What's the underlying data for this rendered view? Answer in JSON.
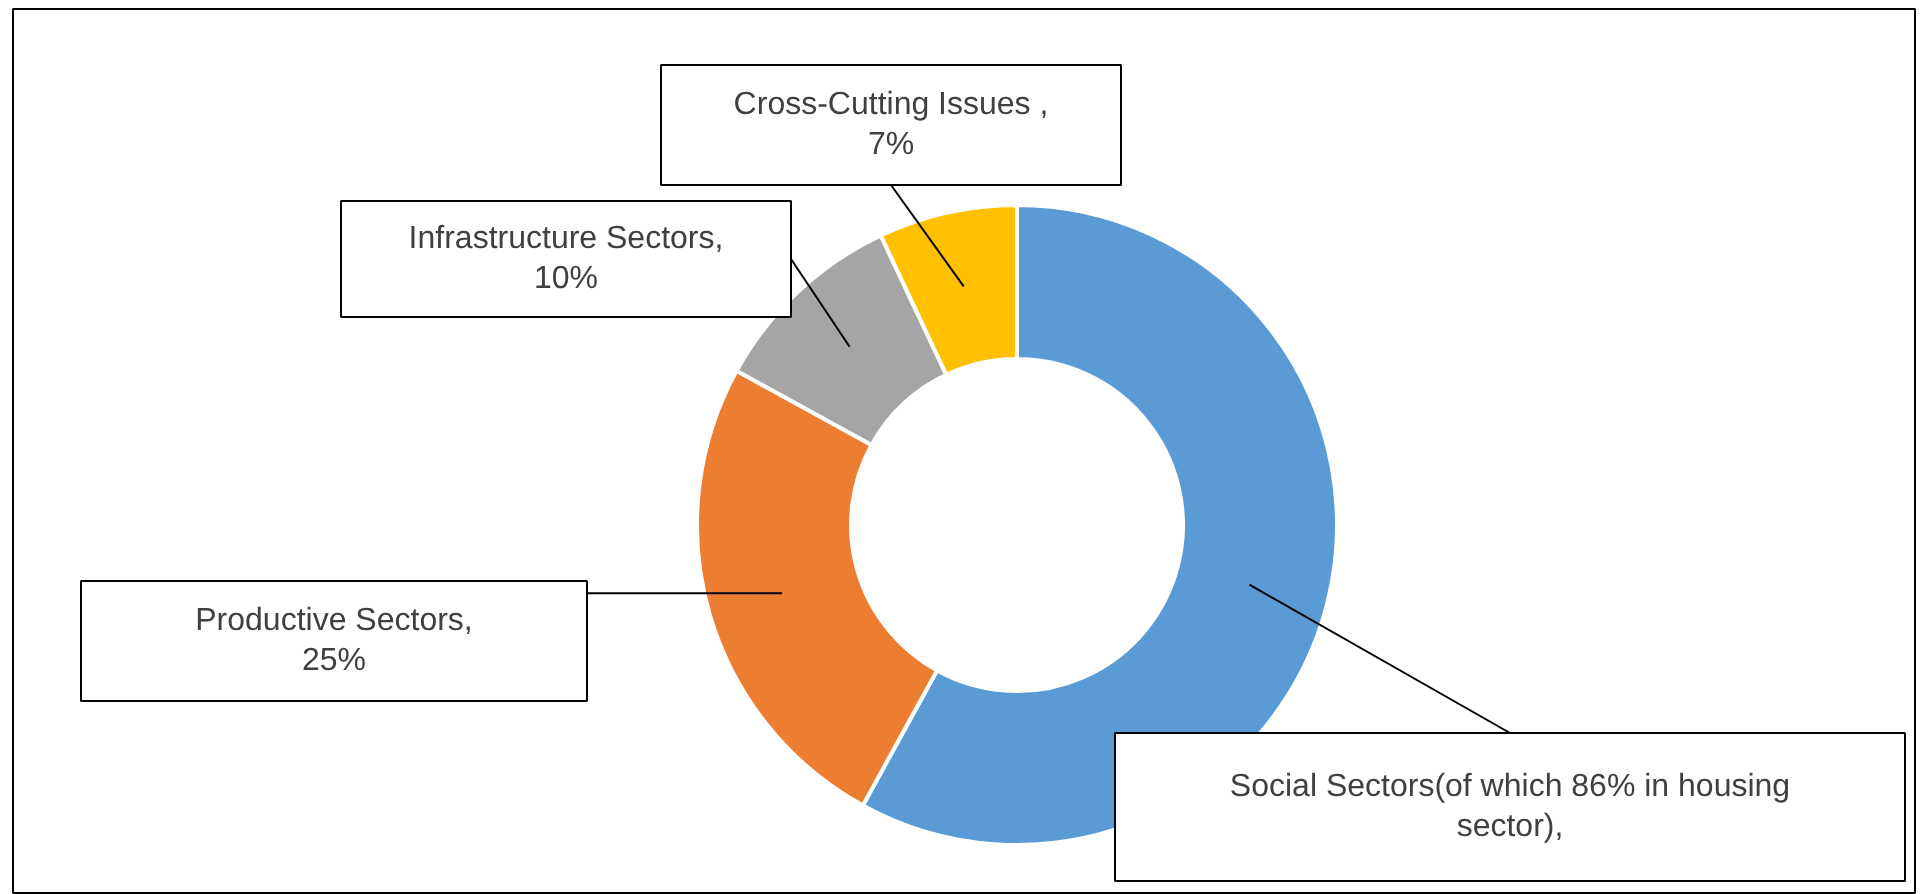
{
  "chart_data": {
    "type": "donut",
    "categories": [
      "Social Sectors(of which 86% in housing sector)",
      "Productive Sectors",
      "Infrastructure Sectors",
      "Cross-Cutting Issues"
    ],
    "values": [
      58,
      25,
      10,
      7
    ],
    "value_labels": [
      ",",
      ", 25%",
      ", 10%",
      " , 7%"
    ],
    "colors": [
      "#5b9bd5",
      "#ed7d31",
      "#a5a5a5",
      "#ffc000"
    ]
  }
}
